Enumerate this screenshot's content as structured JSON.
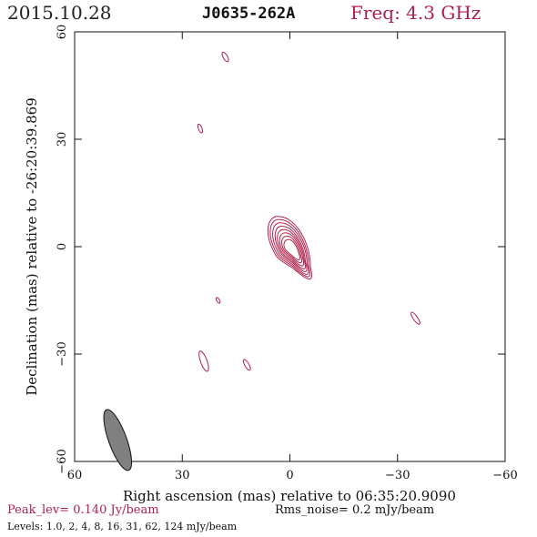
{
  "header": {
    "date": "2015.10.28",
    "source": "J0635-262A",
    "freq": "Freq: 4.3 GHz"
  },
  "footer": {
    "peak": "Peak_lev=  0.140 Jy/beam",
    "rms": "Rms_noise=  0.2 mJy/beam",
    "levels": "Levels: 1.0,   2,   4,   8,  16,  31,  62, 124 mJy/beam"
  },
  "colors": {
    "contour": "#b0204a",
    "beam": "#808080",
    "axis": "#111111"
  },
  "chart_data": {
    "type": "contour",
    "xlabel": "Right ascension (mas) relative to 06:35:20.9090",
    "ylabel": "Declination (mas) relative to -26:20:39.869",
    "xlim": [
      60,
      -60
    ],
    "ylim": [
      -60,
      60
    ],
    "xticks": [
      60,
      30,
      0,
      -30,
      -60
    ],
    "yticks": [
      -60,
      -30,
      0,
      30,
      60
    ],
    "levels_mjy": [
      1.0,
      2,
      4,
      8,
      16,
      31,
      62,
      124
    ],
    "core": {
      "x": 0,
      "y": 0,
      "jet_pa_deg": -30
    },
    "components": [
      {
        "x": 18,
        "y": 53,
        "a": 1.5,
        "b": 0.6,
        "pa": 30
      },
      {
        "x": 25,
        "y": 33,
        "a": 1.3,
        "b": 0.5,
        "pa": 20
      },
      {
        "x": 20,
        "y": -15,
        "a": 0.9,
        "b": 0.4,
        "pa": 30
      },
      {
        "x": 24,
        "y": -32,
        "a": 3.0,
        "b": 0.9,
        "pa": 20
      },
      {
        "x": 12,
        "y": -33,
        "a": 1.7,
        "b": 0.6,
        "pa": 30
      },
      {
        "x": -35,
        "y": -20,
        "a": 2.0,
        "b": 0.6,
        "pa": 35
      }
    ],
    "beam": {
      "x": 48,
      "y": -54,
      "major": 9,
      "minor": 2.5,
      "pa": 20
    }
  }
}
